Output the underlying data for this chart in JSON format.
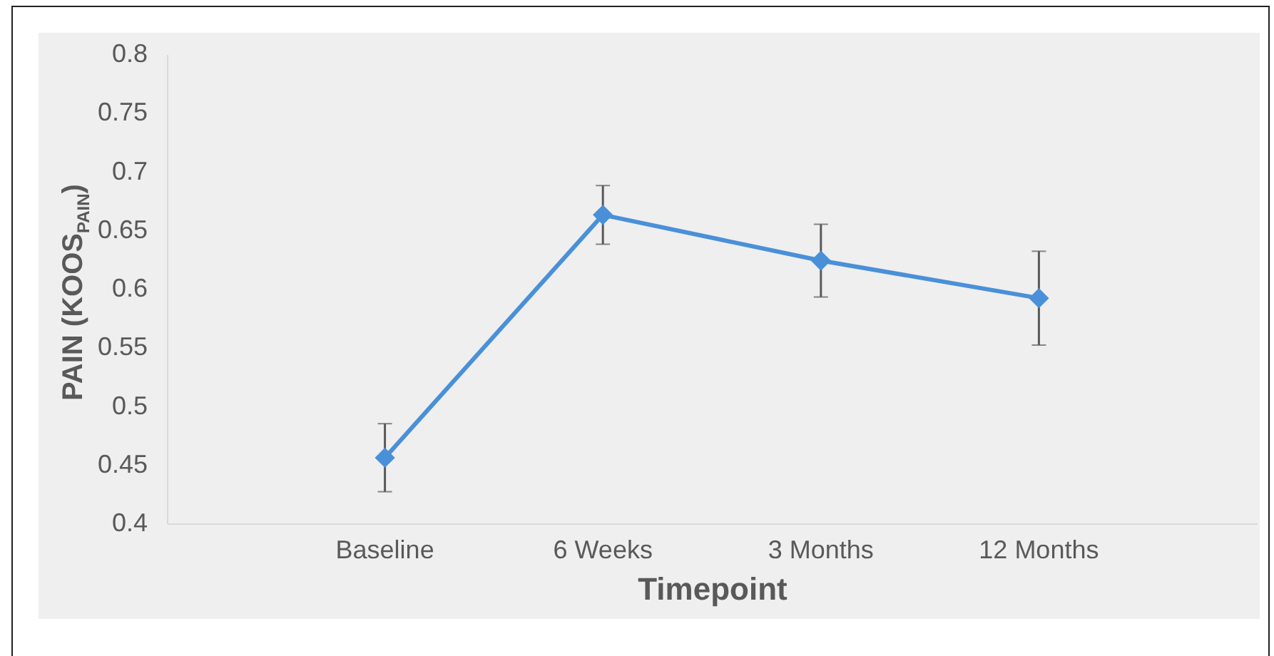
{
  "chart_data": {
    "type": "line",
    "xlabel": "Timepoint",
    "ylabel": "PAIN (KOOS$_{PAIN}$)",
    "categories": [
      "Baseline",
      "6 Weeks",
      "3 Months",
      "12 Months"
    ],
    "series": [
      {
        "color": "#4a90d9",
        "values": [
          0.456,
          0.663,
          0.624,
          0.592
        ],
        "errors": [
          0.029,
          0.025,
          0.031,
          0.04
        ]
      }
    ],
    "ylim": [
      0.4,
      0.8
    ],
    "yticks": [
      0.4,
      0.45,
      0.5,
      0.55,
      0.6,
      0.65,
      0.7,
      0.75,
      0.8
    ],
    "grid": false,
    "marker": "diamond",
    "line_style": "solid"
  }
}
